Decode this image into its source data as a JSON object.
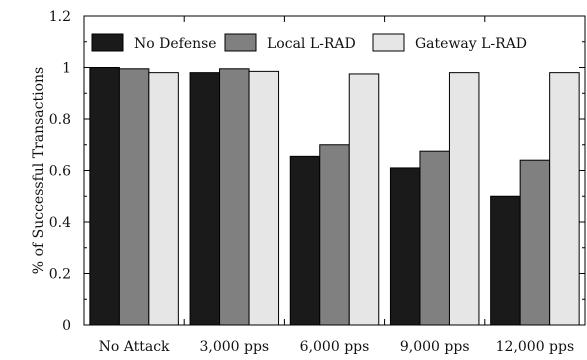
{
  "chart_data": {
    "type": "bar",
    "categories": [
      "No Attack",
      "3,000 pps",
      "6,000 pps",
      "9,000 pps",
      "12,000 pps"
    ],
    "series": [
      {
        "name": "No Defense",
        "color": "#1a1a1a",
        "values": [
          1.0,
          0.98,
          0.655,
          0.61,
          0.5
        ]
      },
      {
        "name": "Local L-RAD",
        "color": "#808080",
        "values": [
          0.995,
          0.995,
          0.7,
          0.675,
          0.64
        ]
      },
      {
        "name": "Gateway L-RAD",
        "color": "#e6e6e6",
        "values": [
          0.98,
          0.985,
          0.975,
          0.98,
          0.98
        ]
      }
    ],
    "xlabel": "",
    "ylabel": "% of Successful Transactions",
    "ylim": [
      0,
      1.2
    ],
    "yticks": [
      "0",
      "0.2",
      "0.4",
      "0.6",
      "0.8",
      "1",
      "1.2"
    ],
    "ytick_values": [
      0,
      0.2,
      0.4,
      0.6,
      0.8,
      1.0,
      1.2
    ],
    "grid": false,
    "legend_position": "top"
  }
}
